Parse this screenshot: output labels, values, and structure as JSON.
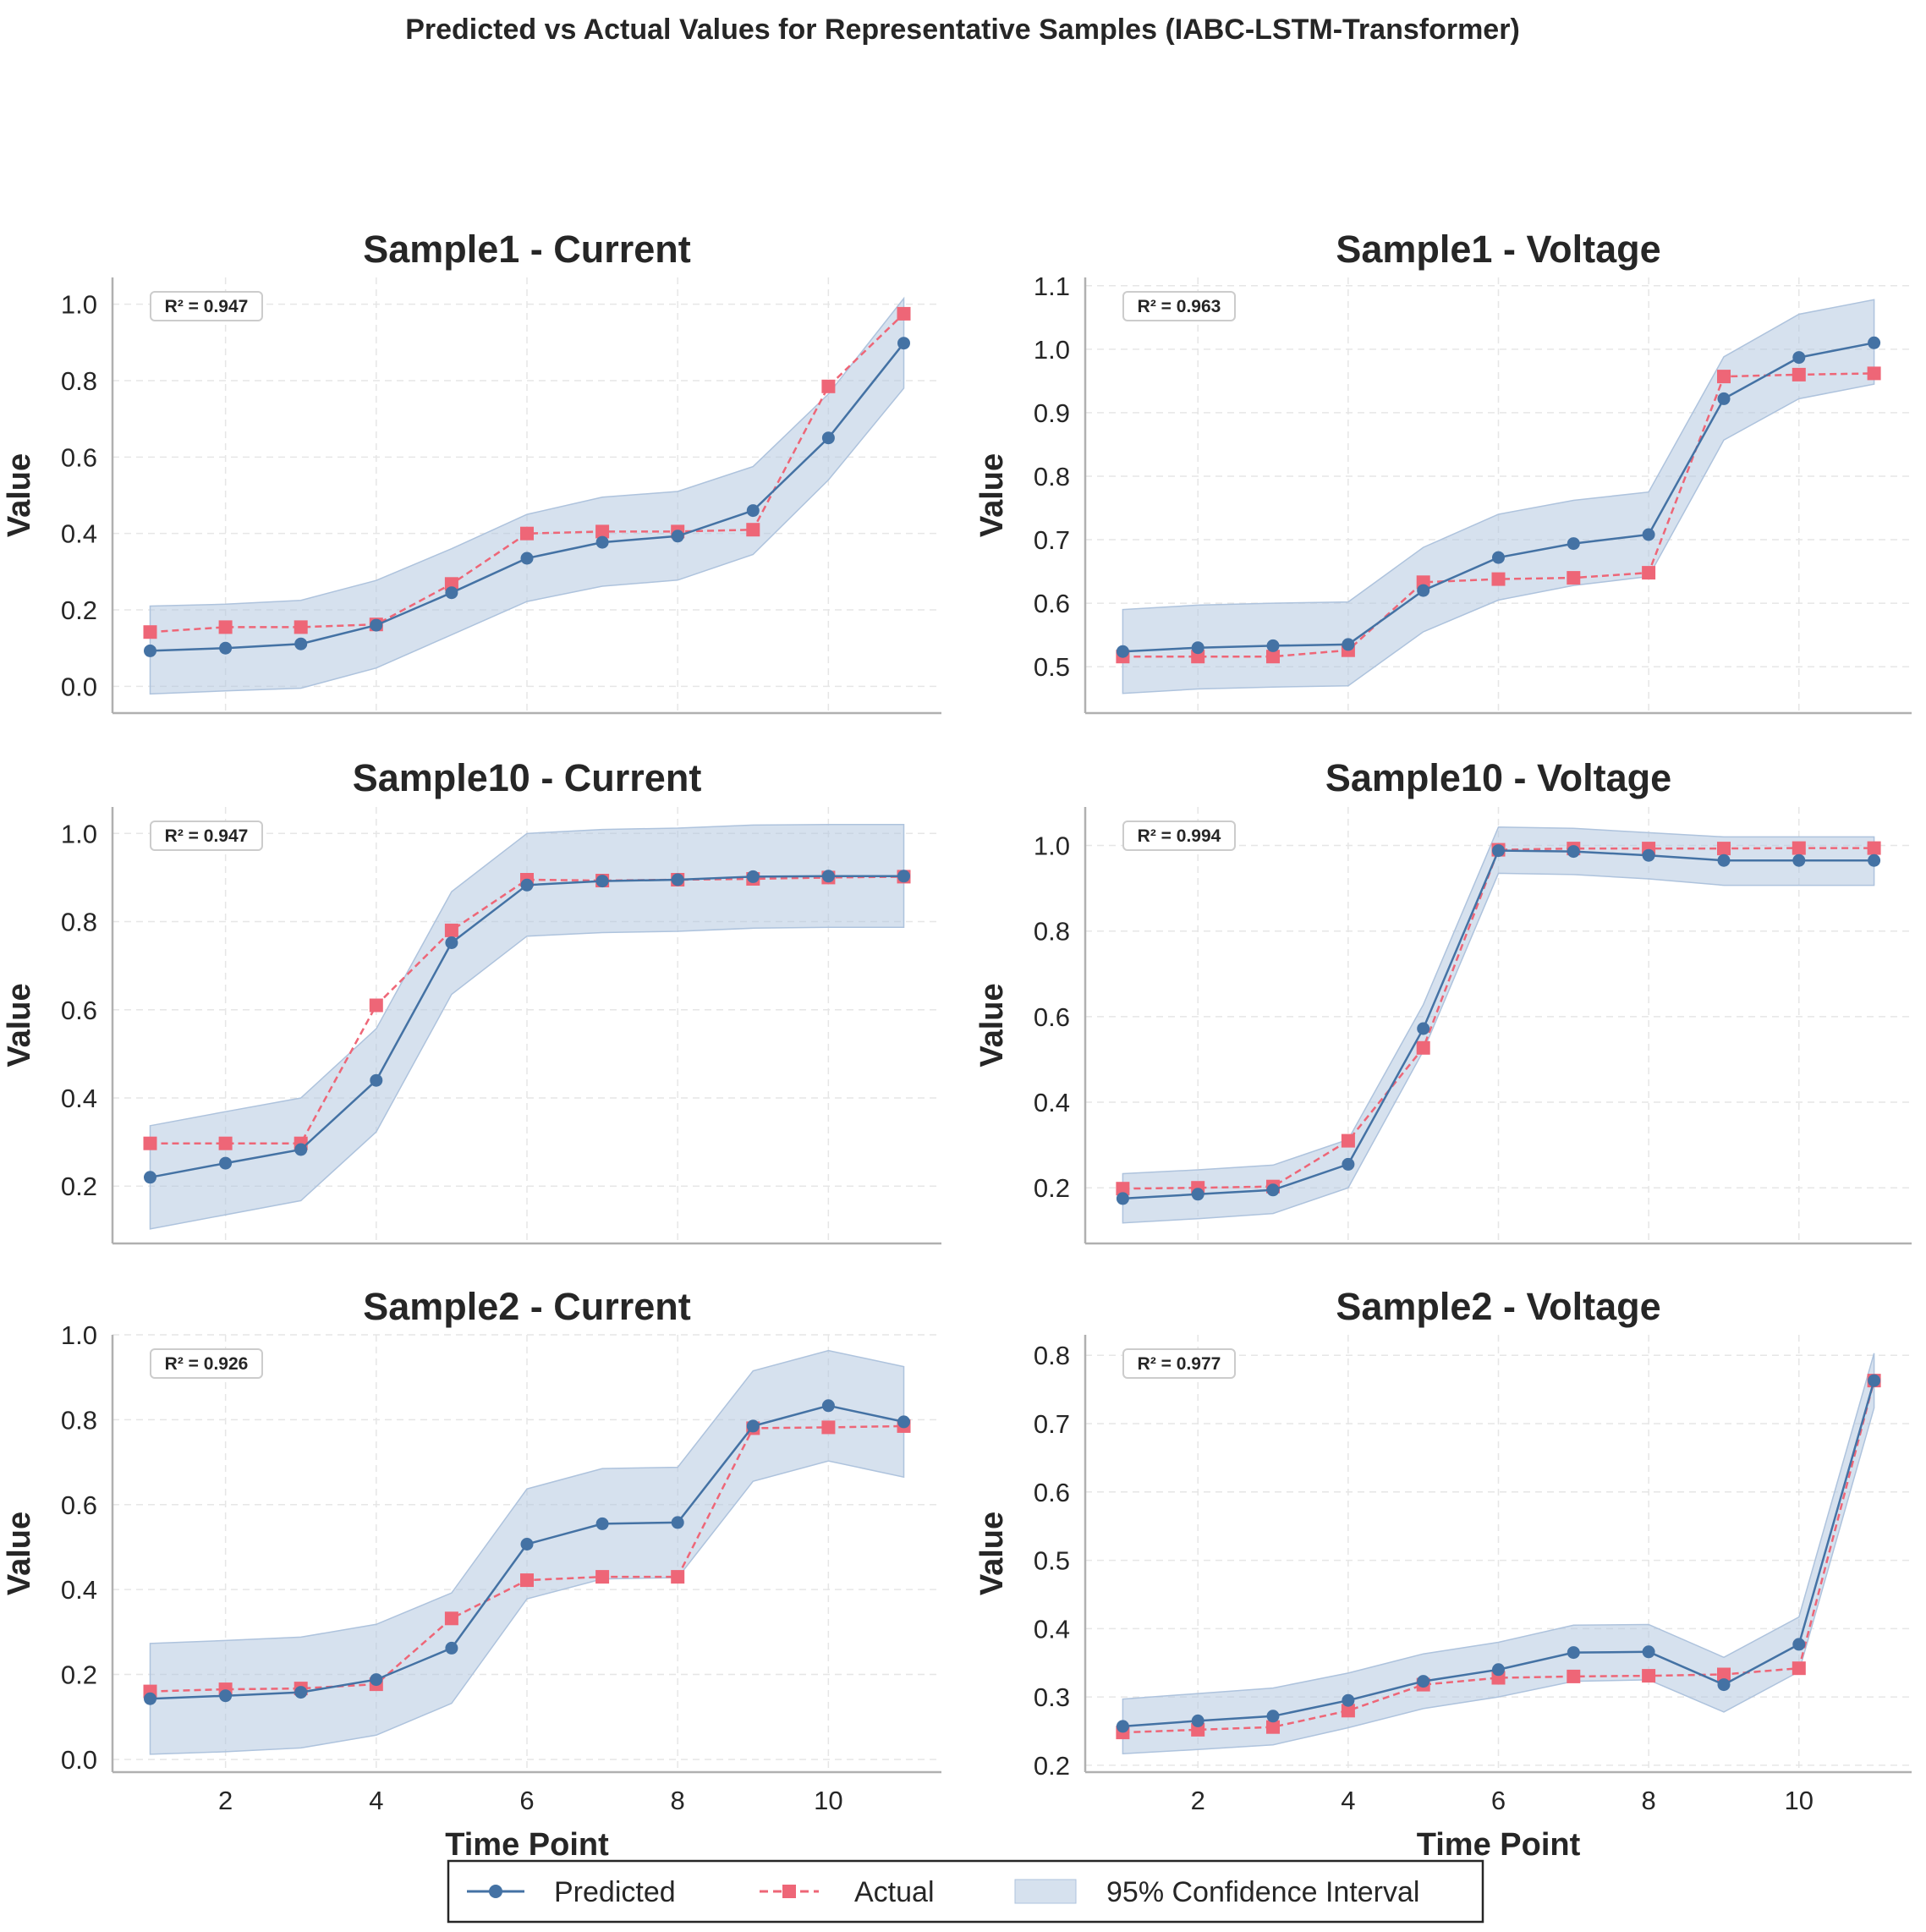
{
  "figure": {
    "title": "Predicted vs Actual Values for Representative Samples (IABC-LSTM-Transformer)"
  },
  "colors": {
    "predicted": "#4472a4",
    "actual": "#ee6677",
    "ci": "#aec3dd",
    "grid": "#e6e6e6",
    "axis": "#b0b0b0",
    "text": "#262626"
  },
  "legend": {
    "predicted": "Predicted",
    "actual": "Actual",
    "ci": "95% Confidence Interval"
  },
  "chart_data": [
    {
      "type": "line",
      "title": "Sample1 - Current",
      "xlabel": "",
      "ylabel": "Value",
      "r2_label": "R² = 0.947",
      "xlim": [
        0.5,
        11.5
      ],
      "ylim": [
        -0.07,
        1.07
      ],
      "yticks": [
        0.0,
        0.2,
        0.4,
        0.6,
        0.8,
        1.0
      ],
      "xticks": [
        2,
        4,
        6,
        8,
        10
      ],
      "grid": true,
      "x": [
        1,
        2,
        3,
        4,
        5,
        6,
        7,
        8,
        9,
        10,
        11
      ],
      "series": [
        {
          "name": "Predicted",
          "values": [
            0.093,
            0.1,
            0.111,
            0.16,
            0.245,
            0.335,
            0.377,
            0.393,
            0.46,
            0.65,
            0.898
          ]
        },
        {
          "name": "Actual",
          "values": [
            0.142,
            0.155,
            0.155,
            0.162,
            0.268,
            0.4,
            0.405,
            0.405,
            0.41,
            0.785,
            0.975
          ]
        }
      ],
      "ci_lower": [
        -0.02,
        -0.012,
        -0.005,
        0.048,
        0.135,
        0.222,
        0.262,
        0.278,
        0.345,
        0.54,
        0.78
      ],
      "ci_upper": [
        0.21,
        0.215,
        0.225,
        0.277,
        0.36,
        0.45,
        0.495,
        0.51,
        0.575,
        0.765,
        1.015
      ]
    },
    {
      "type": "line",
      "title": "Sample1 - Voltage",
      "xlabel": "",
      "ylabel": "Value",
      "r2_label": "R² = 0.963",
      "xlim": [
        0.5,
        11.5
      ],
      "ylim": [
        0.427,
        1.113
      ],
      "yticks": [
        0.5,
        0.6,
        0.7,
        0.8,
        0.9,
        1.0,
        1.1
      ],
      "xticks": [
        2,
        4,
        6,
        8,
        10
      ],
      "grid": true,
      "x": [
        1,
        2,
        3,
        4,
        5,
        6,
        7,
        8,
        9,
        10,
        11
      ],
      "series": [
        {
          "name": "Predicted",
          "values": [
            0.524,
            0.53,
            0.533,
            0.535,
            0.62,
            0.672,
            0.694,
            0.708,
            0.922,
            0.987,
            1.01
          ]
        },
        {
          "name": "Actual",
          "values": [
            0.516,
            0.516,
            0.516,
            0.526,
            0.633,
            0.638,
            0.64,
            0.648,
            0.957,
            0.96,
            0.962
          ]
        }
      ],
      "ci_lower": [
        0.458,
        0.465,
        0.468,
        0.47,
        0.555,
        0.605,
        0.628,
        0.642,
        0.857,
        0.922,
        0.945
      ],
      "ci_upper": [
        0.59,
        0.597,
        0.6,
        0.602,
        0.688,
        0.74,
        0.762,
        0.775,
        0.988,
        1.055,
        1.078
      ]
    },
    {
      "type": "line",
      "title": "Sample10 - Current",
      "xlabel": "",
      "ylabel": "Value",
      "r2_label": "R² = 0.947",
      "xlim": [
        0.5,
        11.5
      ],
      "ylim": [
        0.07,
        1.06
      ],
      "yticks": [
        0.2,
        0.4,
        0.6,
        0.8,
        1.0
      ],
      "xticks": [
        2,
        4,
        6,
        8,
        10
      ],
      "grid": true,
      "x": [
        1,
        2,
        3,
        4,
        5,
        6,
        7,
        8,
        9,
        10,
        11
      ],
      "series": [
        {
          "name": "Predicted",
          "values": [
            0.22,
            0.252,
            0.283,
            0.44,
            0.752,
            0.883,
            0.892,
            0.895,
            0.902,
            0.903,
            0.903
          ]
        },
        {
          "name": "Actual",
          "values": [
            0.297,
            0.297,
            0.297,
            0.61,
            0.78,
            0.895,
            0.893,
            0.895,
            0.897,
            0.9,
            0.902
          ]
        }
      ],
      "ci_lower": [
        0.103,
        0.135,
        0.167,
        0.323,
        0.635,
        0.767,
        0.775,
        0.778,
        0.785,
        0.787,
        0.787
      ],
      "ci_upper": [
        0.337,
        0.369,
        0.4,
        0.557,
        0.868,
        1.0,
        1.009,
        1.012,
        1.019,
        1.02,
        1.02
      ]
    },
    {
      "type": "line",
      "title": "Sample10 - Voltage",
      "xlabel": "",
      "ylabel": "Value",
      "r2_label": "R² = 0.994",
      "xlim": [
        0.5,
        11.5
      ],
      "ylim": [
        0.07,
        1.09
      ],
      "yticks": [
        0.2,
        0.4,
        0.6,
        0.8,
        1.0
      ],
      "xticks": [
        2,
        4,
        6,
        8,
        10
      ],
      "grid": true,
      "x": [
        1,
        2,
        3,
        4,
        5,
        6,
        7,
        8,
        9,
        10,
        11
      ],
      "series": [
        {
          "name": "Predicted",
          "values": [
            0.175,
            0.185,
            0.195,
            0.255,
            0.572,
            0.988,
            0.986,
            0.977,
            0.965,
            0.965,
            0.965
          ]
        },
        {
          "name": "Actual",
          "values": [
            0.198,
            0.2,
            0.203,
            0.31,
            0.527,
            0.99,
            0.993,
            0.993,
            0.993,
            0.994,
            0.994
          ]
        }
      ],
      "ci_lower": [
        0.118,
        0.128,
        0.14,
        0.2,
        0.52,
        0.935,
        0.932,
        0.922,
        0.907,
        0.907,
        0.907
      ],
      "ci_upper": [
        0.233,
        0.242,
        0.253,
        0.313,
        0.628,
        1.043,
        1.04,
        1.03,
        1.02,
        1.02,
        1.02
      ]
    },
    {
      "type": "line",
      "title": "Sample2 - Current",
      "xlabel": "Time Point",
      "ylabel": "Value",
      "r2_label": "R² = 0.926",
      "xlim": [
        0.5,
        11.5
      ],
      "ylim": [
        -0.03,
        1.0
      ],
      "yticks": [
        0.0,
        0.2,
        0.4,
        0.6,
        0.8,
        1.0
      ],
      "xticks": [
        2,
        4,
        6,
        8,
        10
      ],
      "grid": true,
      "x": [
        1,
        2,
        3,
        4,
        5,
        6,
        7,
        8,
        9,
        10,
        11
      ],
      "series": [
        {
          "name": "Predicted",
          "values": [
            0.143,
            0.15,
            0.158,
            0.188,
            0.262,
            0.507,
            0.555,
            0.558,
            0.785,
            0.833,
            0.795
          ]
        },
        {
          "name": "Actual",
          "values": [
            0.16,
            0.165,
            0.167,
            0.177,
            0.332,
            0.422,
            0.43,
            0.43,
            0.78,
            0.782,
            0.785
          ]
        }
      ],
      "ci_lower": [
        0.012,
        0.018,
        0.027,
        0.057,
        0.132,
        0.378,
        0.425,
        0.428,
        0.655,
        0.703,
        0.665
      ],
      "ci_upper": [
        0.273,
        0.28,
        0.288,
        0.318,
        0.392,
        0.637,
        0.685,
        0.688,
        0.915,
        0.963,
        0.925
      ]
    },
    {
      "type": "line",
      "title": "Sample2 - Voltage",
      "xlabel": "Time Point",
      "ylabel": "Value",
      "r2_label": "R² = 0.977",
      "xlim": [
        0.5,
        11.5
      ],
      "ylim": [
        0.19,
        0.83
      ],
      "yticks": [
        0.2,
        0.3,
        0.4,
        0.5,
        0.6,
        0.7,
        0.8
      ],
      "xticks": [
        2,
        4,
        6,
        8,
        10
      ],
      "grid": true,
      "x": [
        1,
        2,
        3,
        4,
        5,
        6,
        7,
        8,
        9,
        10,
        11
      ],
      "series": [
        {
          "name": "Predicted",
          "values": [
            0.257,
            0.265,
            0.272,
            0.295,
            0.323,
            0.34,
            0.365,
            0.366,
            0.318,
            0.377,
            0.763
          ]
        },
        {
          "name": "Actual",
          "values": [
            0.248,
            0.252,
            0.256,
            0.28,
            0.318,
            0.328,
            0.33,
            0.331,
            0.333,
            0.342,
            0.763
          ]
        }
      ],
      "ci_lower": [
        0.217,
        0.223,
        0.23,
        0.255,
        0.283,
        0.3,
        0.323,
        0.325,
        0.278,
        0.337,
        0.723
      ],
      "ci_upper": [
        0.297,
        0.305,
        0.313,
        0.335,
        0.363,
        0.38,
        0.405,
        0.406,
        0.358,
        0.417,
        0.803
      ]
    }
  ]
}
